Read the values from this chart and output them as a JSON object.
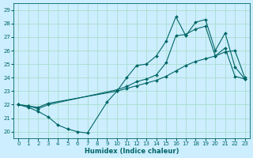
{
  "xlabel": "Humidex (Indice chaleur)",
  "bg_color": "#cceeff",
  "line_color": "#006666",
  "grid_color": "#aaddcc",
  "xlim": [
    -0.5,
    23.5
  ],
  "ylim": [
    19.5,
    29.5
  ],
  "xticks": [
    0,
    1,
    2,
    3,
    4,
    5,
    6,
    7,
    8,
    9,
    10,
    11,
    12,
    13,
    14,
    15,
    16,
    17,
    18,
    19,
    20,
    21,
    22,
    23
  ],
  "yticks": [
    20,
    21,
    22,
    23,
    24,
    25,
    26,
    27,
    28,
    29
  ],
  "line1_x": [
    0,
    1,
    2,
    3,
    4,
    5,
    6,
    7,
    9,
    10,
    11,
    12,
    13,
    14,
    15,
    16,
    17,
    18,
    19,
    20,
    21,
    22,
    23
  ],
  "line1_y": [
    22.0,
    21.8,
    21.5,
    21.1,
    20.5,
    20.2,
    20.0,
    19.9,
    22.2,
    23.0,
    24.0,
    24.9,
    25.0,
    25.6,
    26.7,
    28.5,
    27.1,
    28.1,
    28.3,
    26.0,
    27.3,
    24.8,
    23.9
  ],
  "line2_x": [
    0,
    1,
    2,
    3,
    10,
    11,
    12,
    13,
    14,
    15,
    16,
    17,
    18,
    19,
    20,
    21,
    22,
    23
  ],
  "line2_y": [
    22.0,
    21.9,
    21.8,
    22.1,
    23.0,
    23.2,
    23.4,
    23.6,
    23.8,
    24.1,
    24.5,
    24.9,
    25.2,
    25.4,
    25.6,
    25.9,
    26.0,
    24.0
  ],
  "line3_x": [
    0,
    1,
    2,
    3,
    10,
    11,
    12,
    13,
    14,
    15,
    16,
    17,
    18,
    19,
    20,
    21,
    22,
    23
  ],
  "line3_y": [
    22.0,
    21.9,
    21.7,
    22.0,
    23.1,
    23.35,
    23.7,
    23.9,
    24.2,
    25.1,
    27.1,
    27.2,
    27.6,
    27.8,
    25.6,
    26.2,
    24.1,
    23.9
  ]
}
